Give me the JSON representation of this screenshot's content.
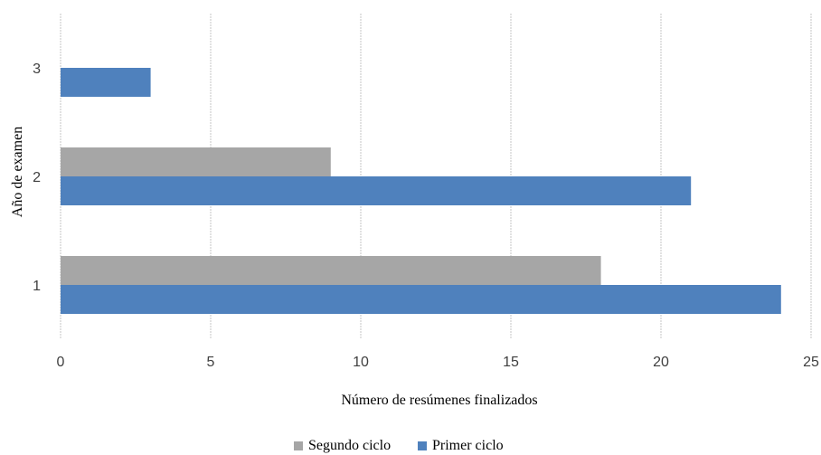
{
  "chart_data": {
    "type": "bar",
    "orientation": "horizontal",
    "categories": [
      "1",
      "2",
      "3"
    ],
    "series": [
      {
        "name": "Segundo ciclo",
        "color": "#a6a6a6",
        "values": [
          18,
          9,
          null
        ]
      },
      {
        "name": "Primer ciclo",
        "color": "#4f81bd",
        "values": [
          24,
          21,
          3
        ]
      }
    ],
    "xlabel": "Número de resúmenes finalizados",
    "ylabel": "Año de examen",
    "xlim": [
      0,
      25
    ],
    "x_ticks": [
      "0",
      "5",
      "10",
      "15",
      "20",
      "25"
    ],
    "grid": "vertical",
    "legend_position": "bottom"
  }
}
